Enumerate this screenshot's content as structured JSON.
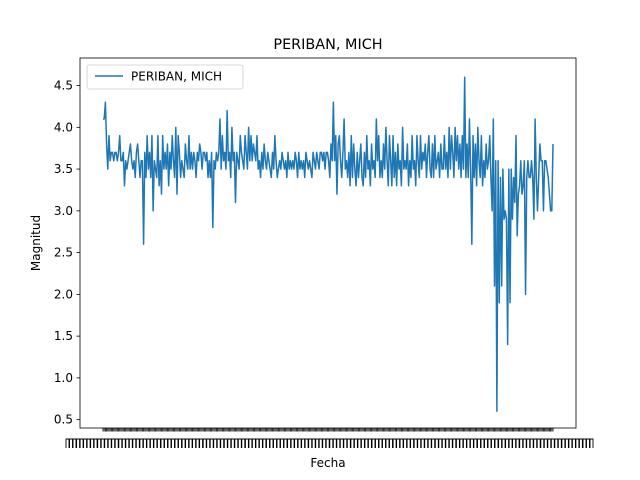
{
  "chart_data": {
    "type": "line",
    "title": "PERIBAN, MICH",
    "xlabel": "Fecha",
    "ylabel": "Magnitud",
    "ylim": [
      0.4,
      4.83
    ],
    "yticks": [
      0.5,
      1.0,
      1.5,
      2.0,
      2.5,
      3.0,
      3.5,
      4.0,
      4.5
    ],
    "yticklabels": [
      "0.5",
      "1.0",
      "1.5",
      "2.0",
      "2.5",
      "3.0",
      "3.5",
      "4.0",
      "4.5"
    ],
    "grid": false,
    "legend_position": "top-left",
    "x_ticks_illegible": true,
    "series": [
      {
        "name": "PERIBAN, MICH",
        "color": "#1f77b4",
        "values": [
          4.1,
          4.1,
          4.3,
          3.8,
          3.5,
          3.9,
          3.6,
          3.7,
          3.7,
          3.6,
          3.7,
          3.7,
          3.6,
          3.7,
          3.9,
          3.6,
          3.6,
          3.7,
          3.3,
          3.6,
          3.5,
          3.6,
          3.7,
          3.8,
          3.6,
          3.5,
          3.6,
          3.4,
          3.7,
          3.8,
          3.6,
          3.4,
          3.6,
          3.6,
          2.6,
          3.7,
          3.4,
          3.9,
          3.5,
          3.7,
          3.4,
          3.9,
          3.0,
          3.6,
          3.5,
          3.4,
          3.9,
          3.3,
          3.6,
          3.2,
          3.9,
          3.5,
          3.7,
          3.5,
          3.8,
          3.3,
          3.7,
          3.5,
          3.9,
          3.6,
          3.4,
          4.0,
          3.2,
          3.9,
          3.7,
          3.4,
          3.6,
          3.5,
          3.4,
          3.8,
          3.6,
          3.5,
          3.9,
          3.5,
          3.7,
          3.5,
          3.7,
          3.6,
          3.4,
          3.7,
          3.6,
          3.8,
          3.7,
          3.5,
          3.7,
          3.7,
          3.6,
          3.7,
          3.4,
          3.6,
          3.4,
          3.7,
          2.8,
          3.6,
          3.5,
          3.7,
          3.6,
          3.7,
          4.1,
          3.5,
          3.9,
          3.6,
          3.7,
          3.5,
          4.2,
          3.6,
          3.7,
          3.4,
          4.0,
          3.6,
          3.7,
          3.1,
          3.7,
          3.6,
          3.5,
          3.9,
          3.7,
          3.6,
          3.5,
          3.9,
          3.7,
          3.5,
          4.0,
          3.6,
          3.9,
          3.6,
          3.8,
          3.7,
          3.6,
          3.9,
          3.5,
          3.6,
          3.4,
          3.7,
          3.5,
          3.8,
          3.6,
          3.5,
          3.7,
          3.6,
          3.5,
          3.4,
          3.7,
          3.5,
          3.9,
          3.6,
          3.4,
          3.5,
          3.6,
          3.5,
          3.7,
          3.6,
          3.5,
          3.6,
          3.4,
          3.7,
          3.5,
          3.6,
          3.5,
          3.6,
          3.5,
          3.7,
          3.6,
          3.4,
          3.7,
          3.5,
          3.6,
          3.5,
          3.6,
          3.4,
          3.7,
          3.6,
          3.5,
          3.6,
          3.5,
          3.4,
          3.7,
          3.6,
          3.5,
          3.7,
          3.6,
          3.5,
          3.7,
          3.7,
          3.6,
          3.7,
          3.5,
          3.7,
          3.7,
          3.6,
          3.4,
          3.8,
          3.6,
          4.3,
          3.6,
          3.9,
          3.2,
          3.8,
          3.9,
          3.6,
          3.4,
          3.7,
          4.1,
          3.5,
          3.6,
          3.4,
          3.7,
          3.3,
          3.9,
          3.4,
          3.8,
          3.5,
          3.3,
          3.7,
          3.4,
          3.6,
          3.8,
          3.4,
          3.3,
          3.7,
          3.4,
          3.9,
          3.5,
          3.6,
          3.3,
          3.8,
          3.5,
          3.6,
          3.4,
          4.1,
          3.6,
          3.9,
          3.4,
          3.6,
          3.4,
          3.8,
          3.5,
          4.0,
          3.6,
          3.3,
          3.9,
          3.6,
          3.3,
          3.9,
          3.4,
          3.7,
          3.3,
          3.8,
          3.5,
          3.6,
          3.3,
          4.0,
          3.5,
          3.6,
          3.5,
          3.8,
          3.3,
          3.6,
          3.4,
          3.9,
          3.5,
          3.6,
          3.3,
          3.9,
          3.6,
          3.4,
          3.9,
          3.5,
          3.7,
          3.6,
          3.8,
          3.4,
          3.7,
          3.9,
          3.5,
          3.4,
          3.8,
          3.4,
          3.9,
          3.5,
          3.6,
          3.7,
          3.4,
          3.8,
          3.5,
          3.5,
          3.9,
          3.5,
          3.7,
          3.4,
          4.0,
          3.5,
          3.9,
          3.7,
          3.4,
          4.0,
          3.6,
          3.9,
          3.5,
          3.8,
          3.4,
          3.9,
          3.5,
          4.6,
          3.4,
          3.8,
          3.4,
          4.1,
          3.5,
          2.6,
          3.9,
          3.4,
          3.8,
          3.3,
          4.0,
          3.6,
          3.4,
          3.9,
          3.3,
          3.6,
          3.4,
          3.8,
          3.5,
          3.6,
          3.9,
          3.4,
          3.0,
          4.1,
          2.1,
          3.6,
          0.6,
          3.6,
          1.9,
          3.4,
          2.1,
          3.5,
          2.9,
          3.0,
          2.9,
          1.4,
          3.5,
          1.9,
          3.5,
          2.9,
          3.4,
          3.1,
          3.9,
          2.7,
          3.2,
          3.3,
          3.6,
          3.2,
          3.3,
          3.6,
          2.0,
          3.4,
          3.6,
          3.4,
          3.4,
          3.6,
          3.4,
          2.9,
          4.1,
          3.4,
          3.0,
          3.4,
          3.8,
          3.6,
          3.6,
          3.0,
          3.6,
          3.6,
          3.5,
          3.4,
          3.2,
          3.0,
          3.0,
          3.8
        ]
      }
    ]
  }
}
